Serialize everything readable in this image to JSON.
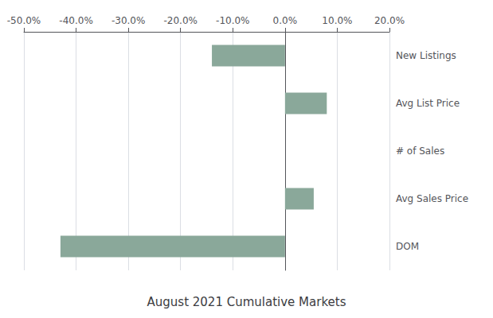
{
  "chart_data": {
    "type": "bar",
    "orientation": "horizontal",
    "title": "August 2021 Cumulative Markets",
    "categories": [
      "New Listings",
      "Avg List Price",
      "# of Sales",
      "Avg Sales Price",
      "DOM"
    ],
    "values": [
      -0.14,
      0.08,
      0.0,
      0.055,
      -0.43
    ],
    "color": "#8aA89A",
    "xlim": [
      -0.5,
      0.2
    ],
    "xticks": [
      {
        "value": -0.5,
        "label": "-50.0%"
      },
      {
        "value": -0.4,
        "label": "-40.0%"
      },
      {
        "value": -0.3,
        "label": "-30.0%"
      },
      {
        "value": -0.2,
        "label": "-20.0%"
      },
      {
        "value": -0.1,
        "label": "-10.0%"
      },
      {
        "value": 0.0,
        "label": "0.0%"
      },
      {
        "value": 0.1,
        "label": "10.0%"
      },
      {
        "value": 0.2,
        "label": "20.0%"
      }
    ],
    "grid": true
  }
}
